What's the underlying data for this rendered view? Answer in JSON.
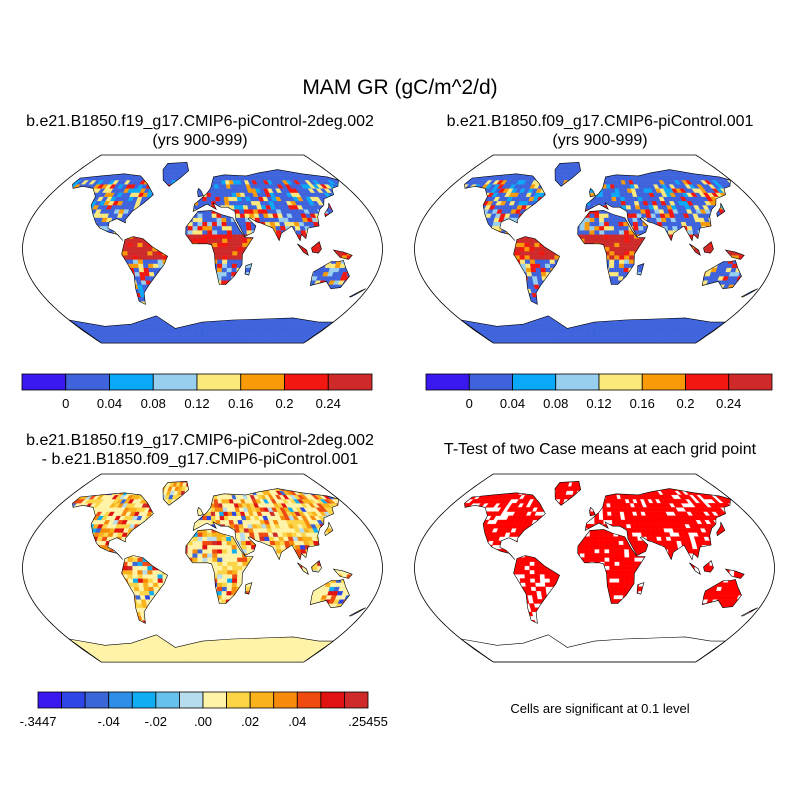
{
  "title": "MAM GR (gC/m^2/d)",
  "panels": [
    {
      "title_lines": [
        "b.e21.B1850.f19_g17.CMIP6-piControl-2deg.002",
        "(yrs 900-999)"
      ]
    },
    {
      "title_lines": [
        "b.e21.B1850.f09_g17.CMIP6-piControl.001",
        "(yrs 900-999)"
      ]
    },
    {
      "title_lines": [
        "b.e21.B1850.f19_g17.CMIP6-piControl-2deg.002",
        "- b.e21.B1850.f09_g17.CMIP6-piControl.001"
      ]
    },
    {
      "title_lines": [
        "T-Test of two Case means at each grid point"
      ]
    }
  ],
  "colorbar_top": {
    "colors": [
      "#3a18f0",
      "#3e63dc",
      "#0aa8f8",
      "#98cfee",
      "#fbe97c",
      "#f99b08",
      "#f21710",
      "#cf2a2a"
    ],
    "labels": [
      "0",
      "0.04",
      "0.08",
      "0.12",
      "0.16",
      "0.2",
      "0.24"
    ]
  },
  "colorbar_diff": {
    "colors": [
      "#3a18f0",
      "#2f46e6",
      "#3b66d8",
      "#2e8ee8",
      "#10aef0",
      "#66c1ec",
      "#b6dcee",
      "#fff3a8",
      "#fcd546",
      "#fab21c",
      "#f68a0a",
      "#ef4a10",
      "#e01212",
      "#cf2a2a"
    ],
    "labels": [
      {
        "text": "-.3447",
        "edge": 0
      },
      {
        "text": "-.04",
        "edge": 3
      },
      {
        "text": "-.02",
        "edge": 5
      },
      {
        "text": ".00",
        "edge": 7
      },
      {
        "text": ".02",
        "edge": 9
      },
      {
        "text": ".04",
        "edge": 11
      },
      {
        "text": ".25455",
        "edge": 14
      }
    ]
  },
  "significance_note": "Cells are significant at 0.1 level",
  "colors": {
    "significant": "#ff0000",
    "land_outline": "#000000"
  }
}
